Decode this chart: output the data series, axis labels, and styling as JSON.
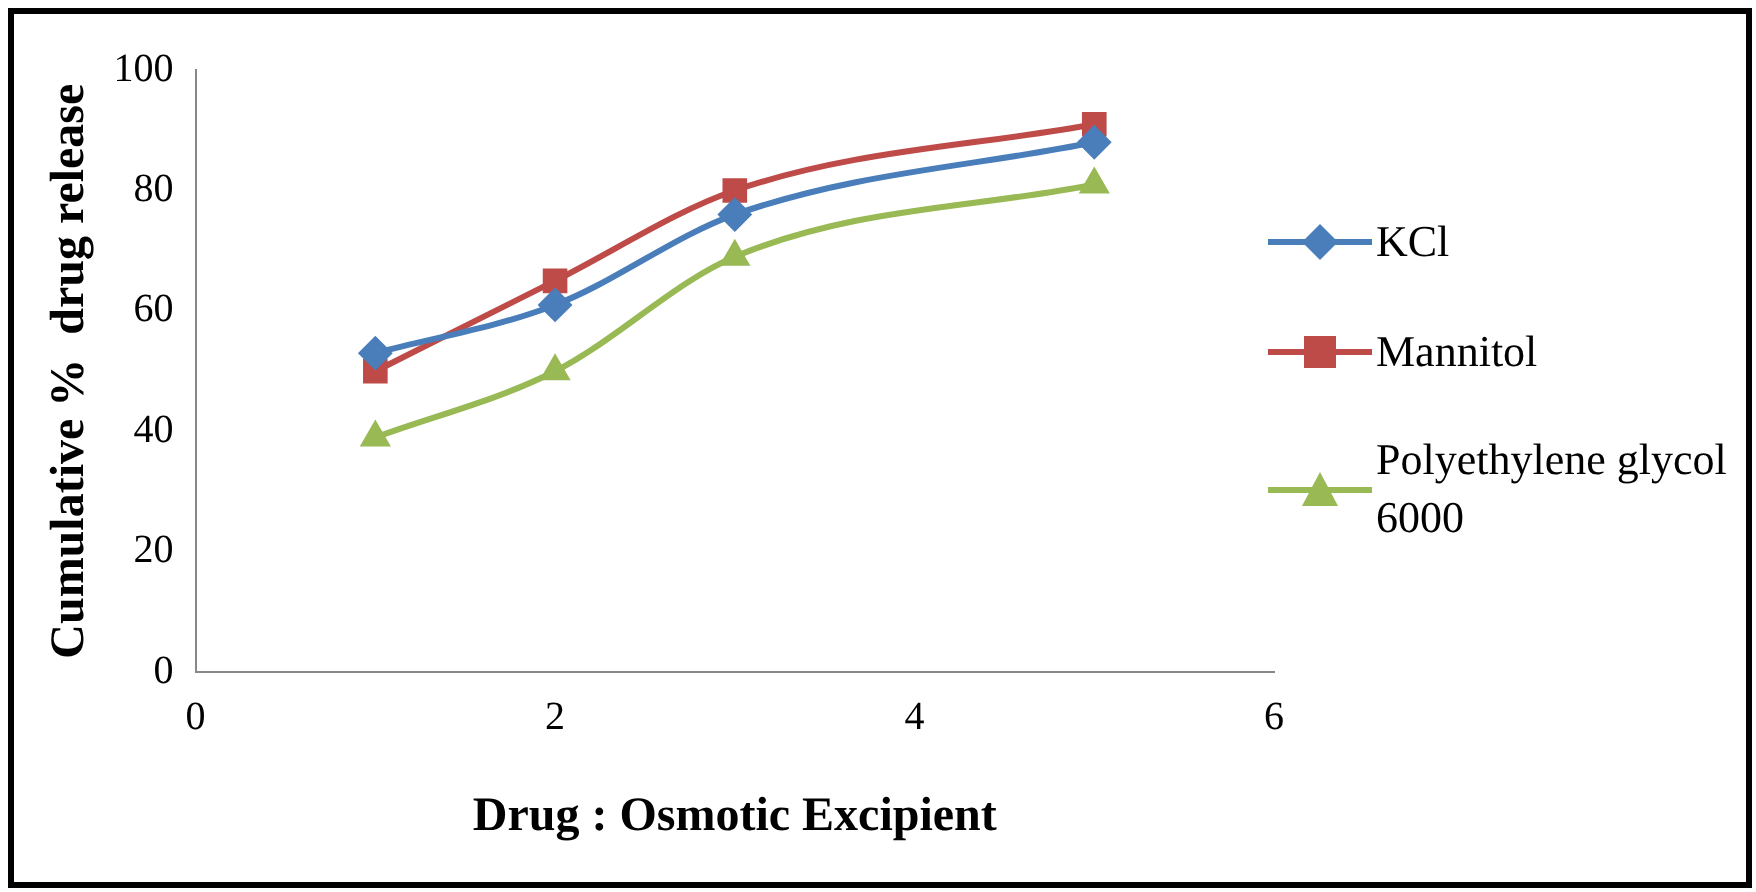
{
  "chart_data": {
    "type": "line",
    "xlabel": "Drug : Osmotic Excipient",
    "ylabel": "Cumulative %  drug release",
    "x": [
      1,
      2,
      3,
      5
    ],
    "series": [
      {
        "name": "KCl",
        "color": "#4a7ebb",
        "marker": "diamond",
        "values": [
          53,
          61,
          76,
          88
        ]
      },
      {
        "name": "Mannitol",
        "color": "#be4b48",
        "marker": "square",
        "values": [
          50,
          65,
          80,
          91
        ]
      },
      {
        "name": "Polyethylene glycol 6000",
        "color": "#98b954",
        "marker": "triangle",
        "values": [
          39,
          50,
          69,
          81
        ]
      }
    ],
    "xlim": [
      0,
      6
    ],
    "xticks": [
      0,
      2,
      4,
      6
    ],
    "ylim": [
      0,
      100
    ],
    "yticks": [
      0,
      20,
      40,
      60,
      80,
      100
    ],
    "grid": false,
    "legend": "right",
    "line_style": "solid"
  }
}
